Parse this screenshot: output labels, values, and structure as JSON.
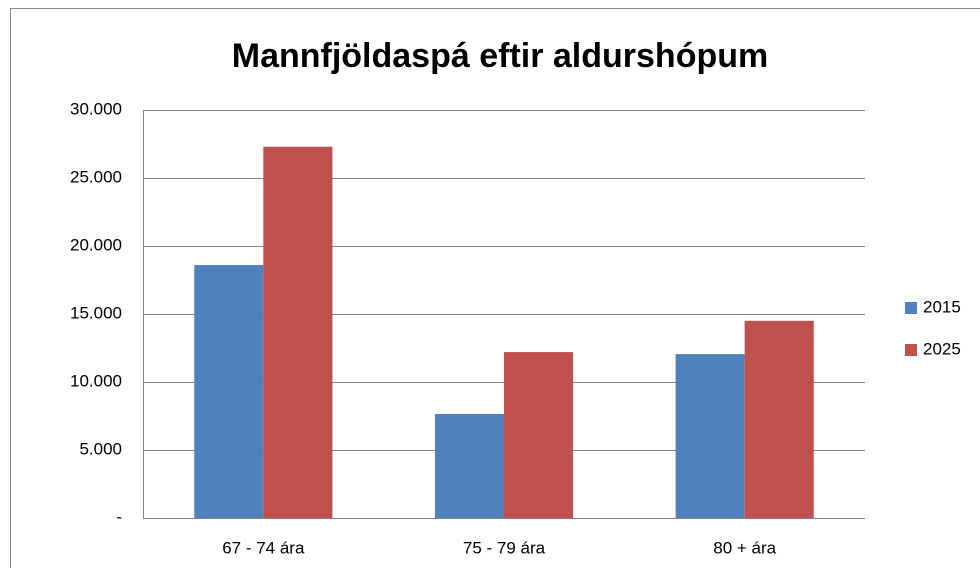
{
  "chart_data": {
    "type": "bar",
    "title": "Mannfjöldaspá eftir aldurshópum",
    "categories": [
      "67 - 74 ára",
      "75 - 79 ára",
      "80 + ára"
    ],
    "series": [
      {
        "name": "2015",
        "color": "#4f81bd",
        "values": [
          18600,
          7650,
          12050
        ]
      },
      {
        "name": "2025",
        "color": "#c0504d",
        "values": [
          27300,
          12200,
          14500
        ]
      }
    ],
    "ylim": [
      0,
      30000
    ],
    "yticks": [
      {
        "value": 0,
        "label": "-"
      },
      {
        "value": 5000,
        "label": "5.000"
      },
      {
        "value": 10000,
        "label": "10.000"
      },
      {
        "value": 15000,
        "label": "15.000"
      },
      {
        "value": 20000,
        "label": "20.000"
      },
      {
        "value": 25000,
        "label": "25.000"
      },
      {
        "value": 30000,
        "label": "30.000"
      }
    ],
    "grid": true,
    "legend": "right"
  }
}
